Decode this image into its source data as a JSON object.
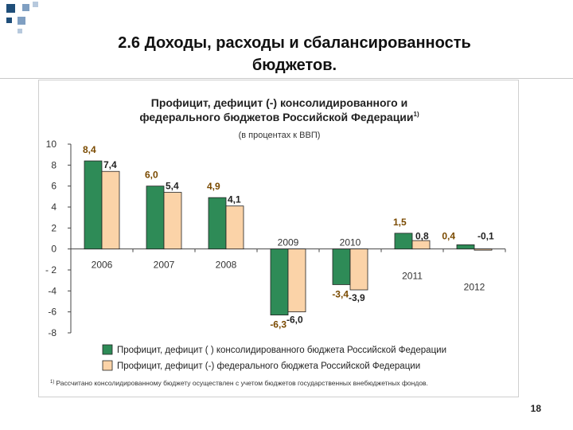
{
  "slide": {
    "title_line1": "2.6 Доходы, расходы и сбалансированность",
    "title_line2": "бюджетов.",
    "page_number": "18"
  },
  "colors": {
    "series1": "#2e8b57",
    "series2": "#fbd3a8",
    "deco_squares": [
      "#1f4e79",
      "#7f9fc2",
      "#b7c9dd"
    ]
  },
  "chart_data": {
    "type": "bar",
    "title_line1": "Профицит, дефицит (-) консолидированного и",
    "title_line2": "федерального бюджетов Российской Федерации",
    "title_sup": "1)",
    "subtitle": "(в процентах к ВВП)",
    "categories": [
      "2006",
      "2007",
      "2008",
      "2009",
      "2010",
      "2011",
      "2012"
    ],
    "series": [
      {
        "name": "Профицит, дефицит ( ) консолидированного бюджета Российской Федерации",
        "values": [
          8.4,
          6.0,
          4.9,
          -6.3,
          -3.4,
          1.5,
          0.4
        ],
        "labels": [
          "8,4",
          "6,0",
          "4,9",
          "-6,3",
          "-3,4",
          "1,5",
          "0,4"
        ]
      },
      {
        "name": "Профицит, дефицит (-) федерального бюджета Российской Федерации",
        "values": [
          7.4,
          5.4,
          4.1,
          -6.0,
          -3.9,
          0.8,
          -0.1
        ],
        "labels": [
          "7,4",
          "5,4",
          "4,1",
          "-6,0",
          "-3,9",
          "0,8",
          "-0,1"
        ]
      }
    ],
    "ylim": [
      -8,
      10
    ],
    "yticks": [
      -8,
      -6,
      -4,
      -2,
      0,
      2,
      4,
      6,
      8,
      10
    ],
    "ytick_labels": [
      "-8",
      "-6",
      "-4",
      "- 2",
      "0",
      "2",
      "4",
      "6",
      "8",
      "10"
    ],
    "legend_position": "bottom",
    "footnote_sup": "1)",
    "footnote": "Рассчитано консолидированному бюджету осуществлен с учетом бюджетов государственных внебюджетных фондов."
  }
}
